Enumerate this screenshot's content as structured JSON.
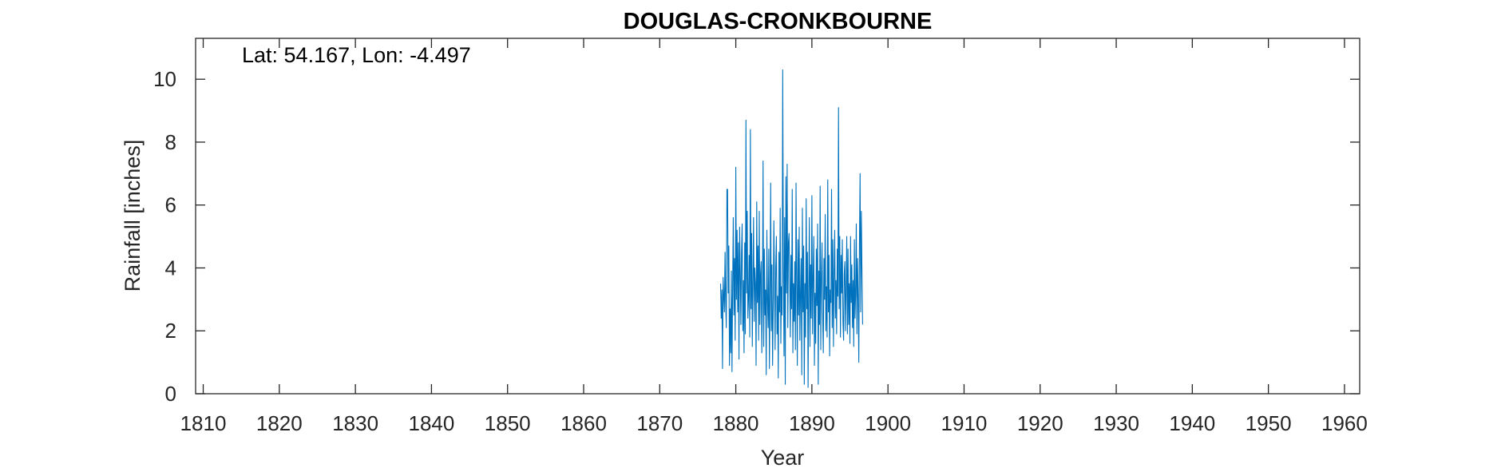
{
  "chart_data": {
    "type": "line",
    "title": "DOUGLAS-CRONKBOURNE",
    "annotation": "Lat: 54.167, Lon: -4.497",
    "xlabel": "Year",
    "ylabel": "Rainfall [inches]",
    "xlim": [
      1809,
      1962
    ],
    "ylim": [
      0,
      11.3
    ],
    "xticks": [
      1810,
      1820,
      1830,
      1840,
      1850,
      1860,
      1870,
      1880,
      1890,
      1900,
      1910,
      1920,
      1930,
      1940,
      1950,
      1960
    ],
    "yticks": [
      0,
      2,
      4,
      6,
      8,
      10
    ],
    "grid": false,
    "line_color": "#0072BD",
    "series": [
      {
        "x_start": 1878.0,
        "x_step": 0.0833333,
        "values": [
          3.5,
          2.4,
          3.3,
          0.8,
          3.7,
          3.1,
          2.6,
          4.5,
          2.9,
          2.1,
          6.5,
          6.5,
          3.2,
          4.7,
          0.9,
          2.7,
          1.3,
          3.9,
          0.7,
          3.4,
          5.6,
          2.5,
          4.3,
          1.7,
          7.2,
          3.0,
          5.2,
          2.6,
          4.8,
          1.1,
          5.3,
          3.9,
          2.2,
          4.5,
          5.4,
          2.0,
          3.6,
          1.3,
          4.8,
          1.9,
          8.7,
          3.2,
          5.8,
          2.4,
          3.0,
          4.4,
          1.8,
          8.4,
          2.7,
          5.1,
          1.5,
          3.6,
          5.6,
          2.3,
          4.0,
          3.5,
          0.9,
          6.1,
          2.9,
          4.7,
          1.7,
          5.8,
          2.2,
          3.8,
          4.2,
          1.3,
          3.1,
          7.4,
          1.5,
          4.6,
          2.5,
          3.3,
          0.6,
          5.2,
          3.0,
          2.1,
          4.6,
          0.8,
          3.2,
          6.7,
          2.0,
          4.1,
          0.9,
          2.7,
          5.5,
          3.6,
          1.4,
          4.0,
          5.0,
          1.9,
          3.1,
          0.5,
          4.5,
          2.6,
          5.9,
          1.6,
          3.4,
          2.5,
          10.3,
          4.4,
          1.2,
          5.6,
          0.3,
          6.9,
          3.2,
          7.3,
          2.1,
          4.8,
          5.1,
          3.7,
          1.8,
          4.4,
          2.7,
          6.5,
          1.3,
          3.5,
          2.3,
          4.2,
          1.4,
          6.7,
          3.6,
          0.9,
          4.9,
          2.5,
          5.3,
          1.7,
          3.2,
          4.3,
          0.6,
          5.9,
          2.6,
          4.7,
          0.3,
          3.5,
          1.8,
          6.2,
          2.7,
          4.5,
          0.2,
          3.4,
          5.6,
          1.5,
          4.1,
          2.4,
          6.3,
          1.9,
          3.7,
          5.0,
          0.9,
          3.2,
          1.6,
          4.6,
          2.8,
          5.4,
          0.3,
          3.9,
          2.2,
          6.6,
          1.4,
          3.6,
          4.8,
          2.5,
          1.3,
          4.3,
          3.0,
          5.7,
          2.0,
          3.4,
          1.8,
          6.8,
          2.6,
          4.4,
          1.2,
          3.3,
          2.9,
          6.5,
          2.1,
          4.9,
          1.5,
          3.8,
          5.2,
          2.4,
          3.6,
          1.9,
          4.6,
          3.1,
          9.1,
          2.7,
          5.0,
          1.8,
          4.4,
          3.2,
          4.9,
          2.3,
          1.7,
          3.8,
          4.2,
          2.0,
          3.3,
          5.0,
          1.9,
          4.6,
          2.2,
          3.5,
          1.6,
          5.0,
          2.9,
          4.1,
          2.1,
          3.6,
          1.5,
          4.9,
          2.4,
          3.2,
          5.4,
          1.9,
          4.3,
          3.0,
          1.0,
          4.7,
          7.0,
          2.6,
          5.8,
          3.8,
          2.2
        ]
      }
    ]
  }
}
